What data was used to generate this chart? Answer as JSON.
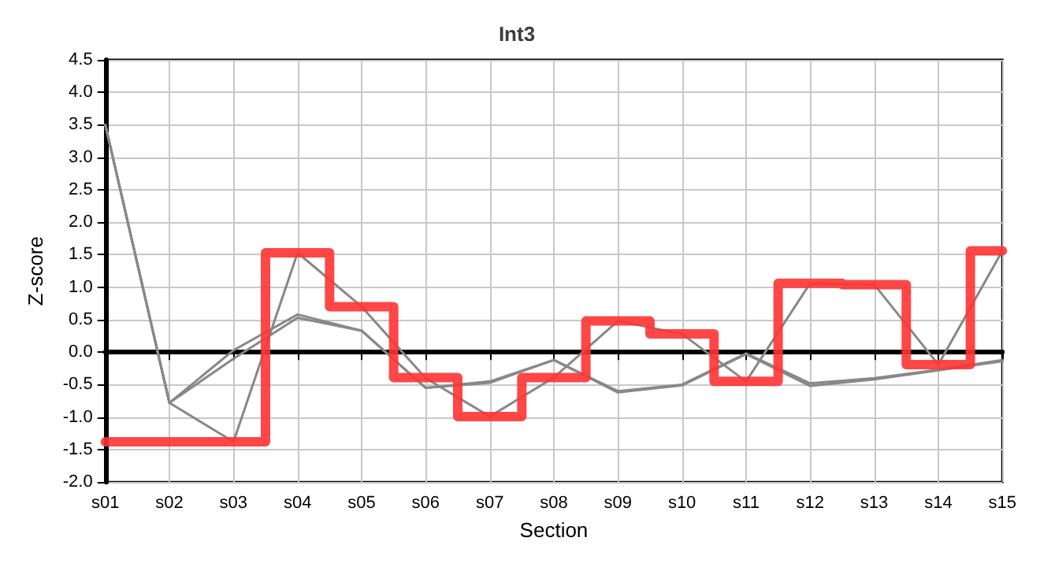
{
  "chart_data": {
    "type": "line",
    "title": "Int3",
    "xlabel": "Section",
    "ylabel": "Z-score",
    "categories": [
      "s01",
      "s02",
      "s03",
      "s04",
      "s05",
      "s06",
      "s07",
      "s08",
      "s09",
      "s10",
      "s11",
      "s12",
      "s13",
      "s14",
      "s15"
    ],
    "series": [
      {
        "color": "#888888",
        "values": [
          3.5,
          -0.78,
          -1.38,
          1.53,
          0.7,
          -0.4,
          -0.99,
          -0.39,
          0.48,
          0.28,
          -0.45,
          1.06,
          1.04,
          -0.19,
          1.56
        ]
      },
      {
        "color": "#888888",
        "values": [
          3.5,
          -0.78,
          0.03,
          0.58,
          0.33,
          -0.55,
          -0.47,
          -0.12,
          -0.6,
          -0.5,
          -0.02,
          -0.48,
          -0.4,
          -0.27,
          -0.12
        ]
      },
      {
        "color": "#888888",
        "values": [
          3.5,
          -0.78,
          -0.1,
          0.53,
          0.33,
          -0.55,
          -0.45,
          -0.12,
          -0.62,
          -0.51,
          -0.03,
          -0.52,
          -0.42,
          -0.28,
          -0.14
        ]
      },
      {
        "type": "step",
        "color": "#ff3333",
        "values": [
          -1.38,
          -1.38,
          -1.38,
          1.53,
          0.7,
          -0.39,
          -0.99,
          -0.39,
          0.48,
          0.28,
          -0.45,
          1.06,
          1.04,
          -0.19,
          1.56
        ]
      }
    ],
    "ylim": [
      -2.0,
      4.5
    ],
    "yticks": [
      {
        "value": -2,
        "label": "-2.0"
      },
      {
        "value": -1.5,
        "label": "-1.5"
      },
      {
        "value": -1,
        "label": "-1.0"
      },
      {
        "value": -0.5,
        "label": "-0.5"
      },
      {
        "value": 0,
        "label": "0.0"
      },
      {
        "value": 0.5,
        "label": "0.5"
      },
      {
        "value": 1,
        "label": "1.0"
      },
      {
        "value": 1.5,
        "label": "1.5"
      },
      {
        "value": 2,
        "label": "2.0"
      },
      {
        "value": 2.5,
        "label": "2.5"
      },
      {
        "value": 3,
        "label": "3.0"
      },
      {
        "value": 3.5,
        "label": "3.5"
      },
      {
        "value": 4,
        "label": "4.0"
      },
      {
        "value": 4.5,
        "label": "4.5"
      }
    ],
    "grid": true,
    "marker": "none"
  }
}
